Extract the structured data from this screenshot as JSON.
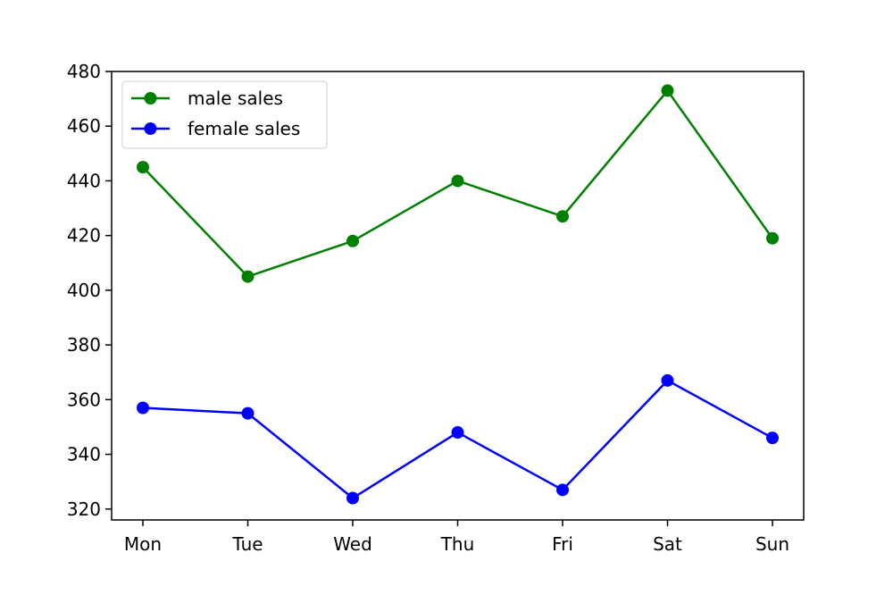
{
  "chart_data": {
    "type": "line",
    "title": "",
    "xlabel": "",
    "ylabel": "",
    "categories": [
      "Mon",
      "Tue",
      "Wed",
      "Thu",
      "Fri",
      "Sat",
      "Sun"
    ],
    "ylim": [
      316,
      480
    ],
    "yticks": [
      320,
      340,
      360,
      380,
      400,
      420,
      440,
      460,
      480
    ],
    "yticks_text": [
      "320",
      "340",
      "360",
      "380",
      "400",
      "420",
      "440",
      "460",
      "480"
    ],
    "grid": false,
    "legend_position": "top-left",
    "series": [
      {
        "name": "male sales",
        "color": "#008000",
        "marker": "circle",
        "values": [
          445,
          405,
          418,
          440,
          427,
          473,
          419
        ]
      },
      {
        "name": "female sales",
        "color": "#0000ff",
        "marker": "circle",
        "values": [
          357,
          355,
          324,
          348,
          327,
          367,
          346
        ]
      }
    ]
  }
}
